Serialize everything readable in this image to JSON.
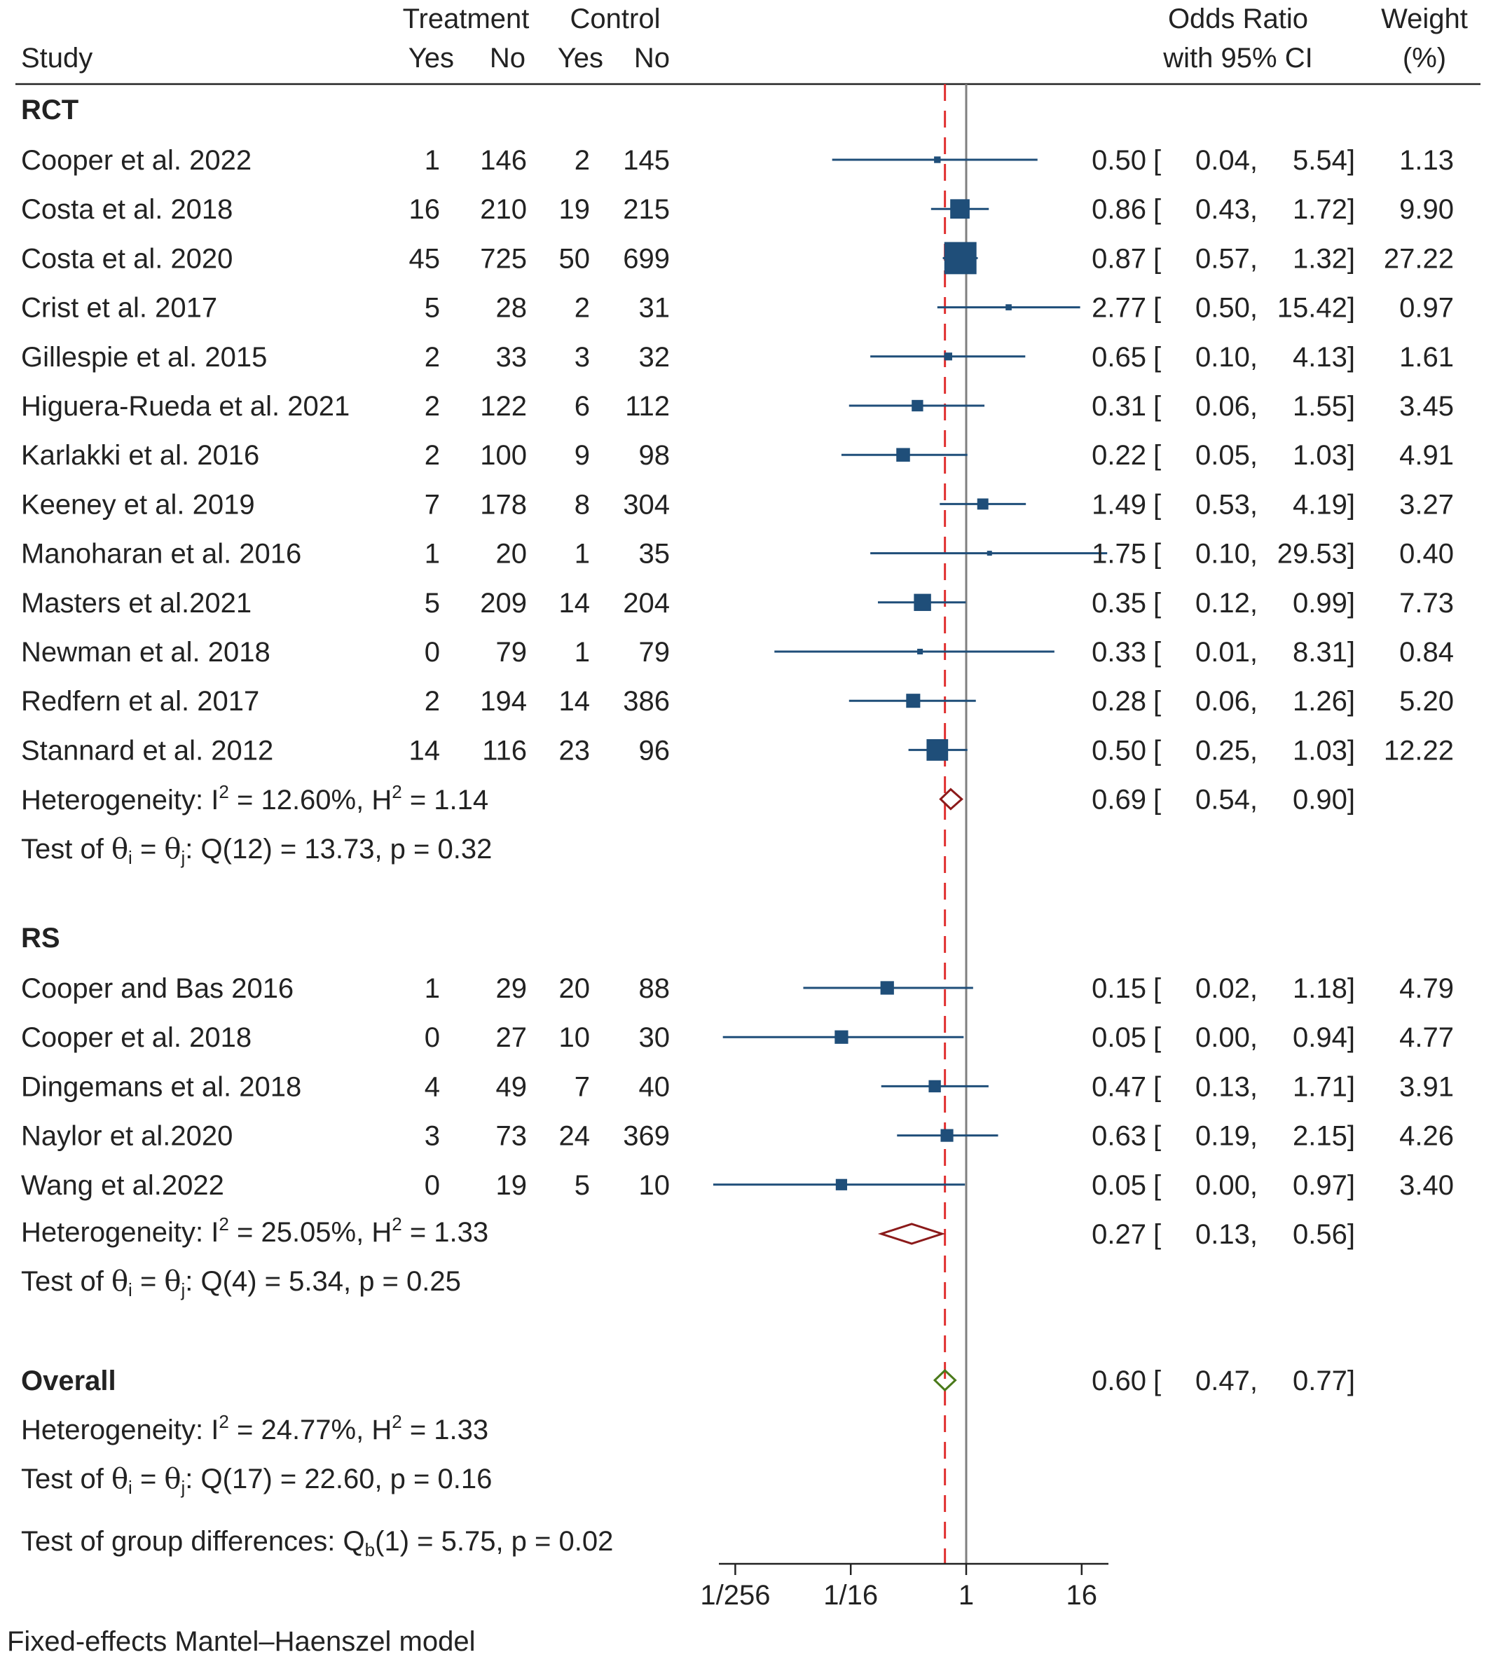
{
  "header": {
    "study": "Study",
    "treatment": "Treatment",
    "control": "Control",
    "yes": "Yes",
    "no": "No",
    "or_line1": "Odds Ratio",
    "or_line2": "with 95% CI",
    "weight_line1": "Weight",
    "weight_line2": "(%)"
  },
  "chart_data": {
    "type": "forest",
    "scale": "log2",
    "x_ticks": [
      "1/256",
      "1/16",
      "1",
      "16"
    ],
    "x_tick_values": [
      0.00390625,
      0.0625,
      1,
      16
    ],
    "x_range": [
      0.0029,
      29.53
    ],
    "null_line": 1,
    "overall_line": 0.6,
    "groups": [
      {
        "name": "RCT",
        "studies": [
          {
            "study": "Cooper et al. 2022",
            "t_yes": "1",
            "t_no": "146",
            "c_yes": "2",
            "c_no": "145",
            "or": 0.5,
            "lo": 0.04,
            "hi": 5.54,
            "or_text": "0.50",
            "lo_text": "0.04,",
            "hi_text": "5.54]",
            "weight": "1.13"
          },
          {
            "study": "Costa et al. 2018",
            "t_yes": "16",
            "t_no": "210",
            "c_yes": "19",
            "c_no": "215",
            "or": 0.86,
            "lo": 0.43,
            "hi": 1.72,
            "or_text": "0.86",
            "lo_text": "0.43,",
            "hi_text": "1.72]",
            "weight": "9.90"
          },
          {
            "study": "Costa et al. 2020",
            "t_yes": "45",
            "t_no": "725",
            "c_yes": "50",
            "c_no": "699",
            "or": 0.87,
            "lo": 0.57,
            "hi": 1.32,
            "or_text": "0.87",
            "lo_text": "0.57,",
            "hi_text": "1.32]",
            "weight": "27.22"
          },
          {
            "study": "Crist et al. 2017",
            "t_yes": "5",
            "t_no": "28",
            "c_yes": "2",
            "c_no": "31",
            "or": 2.77,
            "lo": 0.5,
            "hi": 15.42,
            "or_text": "2.77",
            "lo_text": "0.50,",
            "hi_text": "15.42]",
            "weight": "0.97"
          },
          {
            "study": "Gillespie et al. 2015",
            "t_yes": "2",
            "t_no": "33",
            "c_yes": "3",
            "c_no": "32",
            "or": 0.65,
            "lo": 0.1,
            "hi": 4.13,
            "or_text": "0.65",
            "lo_text": "0.10,",
            "hi_text": "4.13]",
            "weight": "1.61"
          },
          {
            "study": "Higuera-Rueda et al. 2021",
            "t_yes": "2",
            "t_no": "122",
            "c_yes": "6",
            "c_no": "112",
            "or": 0.31,
            "lo": 0.06,
            "hi": 1.55,
            "or_text": "0.31",
            "lo_text": "0.06,",
            "hi_text": "1.55]",
            "weight": "3.45"
          },
          {
            "study": "Karlakki et al. 2016",
            "t_yes": "2",
            "t_no": "100",
            "c_yes": "9",
            "c_no": "98",
            "or": 0.22,
            "lo": 0.05,
            "hi": 1.03,
            "or_text": "0.22",
            "lo_text": "0.05,",
            "hi_text": "1.03]",
            "weight": "4.91"
          },
          {
            "study": "Keeney et al. 2019",
            "t_yes": "7",
            "t_no": "178",
            "c_yes": "8",
            "c_no": "304",
            "or": 1.49,
            "lo": 0.53,
            "hi": 4.19,
            "or_text": "1.49",
            "lo_text": "0.53,",
            "hi_text": "4.19]",
            "weight": "3.27"
          },
          {
            "study": "Manoharan et al. 2016",
            "t_yes": "1",
            "t_no": "20",
            "c_yes": "1",
            "c_no": "35",
            "or": 1.75,
            "lo": 0.1,
            "hi": 29.53,
            "or_text": "1.75",
            "lo_text": "0.10,",
            "hi_text": "29.53]",
            "weight": "0.40"
          },
          {
            "study": "Masters et al.2021",
            "t_yes": "5",
            "t_no": "209",
            "c_yes": "14",
            "c_no": "204",
            "or": 0.35,
            "lo": 0.12,
            "hi": 0.99,
            "or_text": "0.35",
            "lo_text": "0.12,",
            "hi_text": "0.99]",
            "weight": "7.73"
          },
          {
            "study": "Newman et al. 2018",
            "t_yes": "0",
            "t_no": "79",
            "c_yes": "1",
            "c_no": "79",
            "or": 0.33,
            "lo": 0.01,
            "hi": 8.31,
            "or_text": "0.33",
            "lo_text": "0.01,",
            "hi_text": "8.31]",
            "weight": "0.84"
          },
          {
            "study": "Redfern et al. 2017",
            "t_yes": "2",
            "t_no": "194",
            "c_yes": "14",
            "c_no": "386",
            "or": 0.28,
            "lo": 0.06,
            "hi": 1.26,
            "or_text": "0.28",
            "lo_text": "0.06,",
            "hi_text": "1.26]",
            "weight": "5.20"
          },
          {
            "study": "Stannard et al. 2012",
            "t_yes": "14",
            "t_no": "116",
            "c_yes": "23",
            "c_no": "96",
            "or": 0.5,
            "lo": 0.25,
            "hi": 1.03,
            "or_text": "0.50",
            "lo_text": "0.25,",
            "hi_text": "1.03]",
            "weight": "12.22"
          }
        ],
        "pooled": {
          "or": 0.69,
          "lo": 0.54,
          "hi": 0.9,
          "or_text": "0.69",
          "lo_text": "0.54,",
          "hi_text": "0.90]"
        },
        "het": {
          "prefix": "Heterogeneity: I",
          "i2": " = 12.60%, H",
          "h2": " = 1.14",
          "sup": "2"
        },
        "test": {
          "prefix": "Test of ",
          "theta": "θ",
          "i": "i",
          "eq": " = ",
          "j": "j",
          "rest": ": Q(12) = 13.73, p = 0.32"
        }
      },
      {
        "name": "RS",
        "studies": [
          {
            "study": "Cooper and Bas 2016",
            "t_yes": "1",
            "t_no": "29",
            "c_yes": "20",
            "c_no": "88",
            "or": 0.15,
            "lo": 0.02,
            "hi": 1.18,
            "or_text": "0.15",
            "lo_text": "0.02,",
            "hi_text": "1.18]",
            "weight": "4.79"
          },
          {
            "study": "Cooper et al. 2018",
            "t_yes": "0",
            "t_no": "27",
            "c_yes": "10",
            "c_no": "30",
            "or": 0.05,
            "lo": 0.0029,
            "hi": 0.94,
            "or_text": "0.05",
            "lo_text": "0.00,",
            "hi_text": "0.94]",
            "weight": "4.77"
          },
          {
            "study": "Dingemans et al. 2018",
            "t_yes": "4",
            "t_no": "49",
            "c_yes": "7",
            "c_no": "40",
            "or": 0.47,
            "lo": 0.13,
            "hi": 1.71,
            "or_text": "0.47",
            "lo_text": "0.13,",
            "hi_text": "1.71]",
            "weight": "3.91"
          },
          {
            "study": "Naylor et al.2020",
            "t_yes": "3",
            "t_no": "73",
            "c_yes": "24",
            "c_no": "369",
            "or": 0.63,
            "lo": 0.19,
            "hi": 2.15,
            "or_text": "0.63",
            "lo_text": "0.19,",
            "hi_text": "2.15]",
            "weight": "4.26"
          },
          {
            "study": "Wang et al.2022",
            "t_yes": "0",
            "t_no": "19",
            "c_yes": "5",
            "c_no": "10",
            "or": 0.05,
            "lo": 0.0023,
            "hi": 0.97,
            "or_text": "0.05",
            "lo_text": "0.00,",
            "hi_text": "0.97]",
            "weight": "3.40"
          }
        ],
        "pooled": {
          "or": 0.27,
          "lo": 0.13,
          "hi": 0.56,
          "or_text": "0.27",
          "lo_text": "0.13,",
          "hi_text": "0.56]"
        },
        "het": {
          "prefix": "Heterogeneity: I",
          "i2": " = 25.05%, H",
          "h2": " = 1.33",
          "sup": "2"
        },
        "test": {
          "prefix": "Test of ",
          "theta": "θ",
          "i": "i",
          "eq": " = ",
          "j": "j",
          "rest": ": Q(4) = 5.34, p = 0.25"
        }
      }
    ],
    "overall": {
      "label": "Overall",
      "or": 0.6,
      "lo": 0.47,
      "hi": 0.77,
      "or_text": "0.60",
      "lo_text": "0.47,",
      "hi_text": "0.77]",
      "het": {
        "prefix": "Heterogeneity: I",
        "i2": " = 24.77%, H",
        "h2": " = 1.33",
        "sup": "2"
      },
      "test": {
        "prefix": "Test of ",
        "theta": "θ",
        "i": "i",
        "eq": " = ",
        "j": "j",
        "rest": ": Q(17) = 22.60, p = 0.16"
      }
    },
    "group_test": {
      "prefix": "Test of group differences: Q",
      "sub": "b",
      "rest": "(1) = 5.75, p = 0.02"
    },
    "footnote": "Fixed-effects Mantel–Haenszel model",
    "colors": {
      "marker": "#1f4e79",
      "ci_line": "#1f4e79",
      "subgroup_diamond": "#8b1a1a",
      "overall_diamond": "#4a7a1a",
      "null_line": "#808080",
      "overall_line": "#e03030",
      "text": "#222222"
    }
  }
}
